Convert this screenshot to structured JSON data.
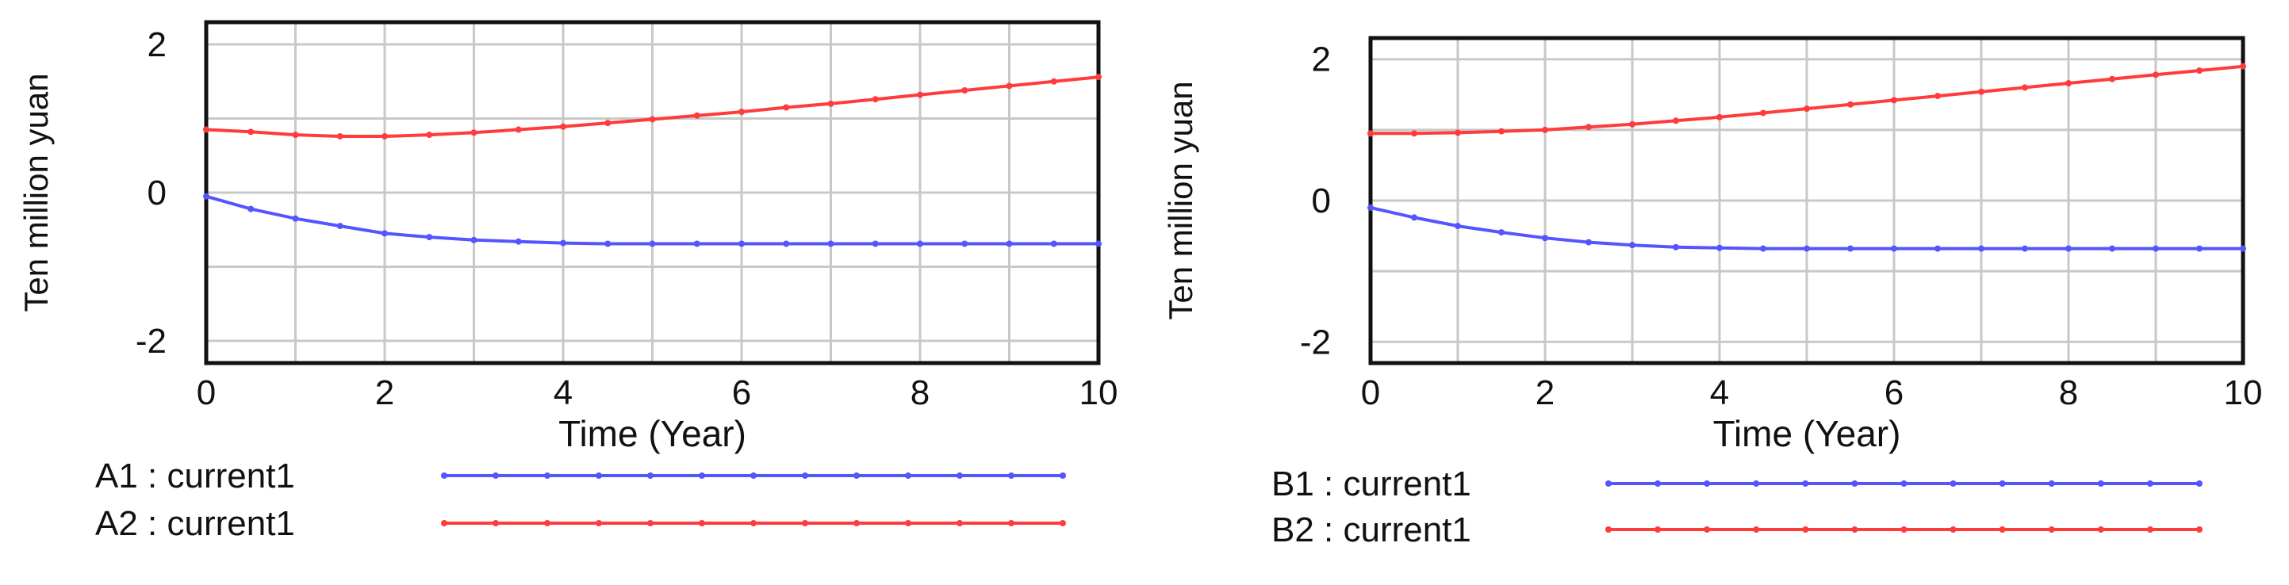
{
  "chart_data": [
    {
      "type": "line",
      "xlabel": "Time (Year)",
      "ylabel": "Ten million yuan",
      "xlim": [
        0,
        10
      ],
      "ylim": [
        -2.3,
        2.3
      ],
      "xticks": [
        0,
        2,
        4,
        6,
        8,
        10
      ],
      "yticks": [
        -2,
        0,
        2
      ],
      "grid": true,
      "legend_position": "bottom",
      "series": [
        {
          "name": "A1 : current1",
          "color": "#5555ff",
          "x": [
            0,
            0.5,
            1,
            1.5,
            2,
            2.5,
            3,
            3.5,
            4,
            4.5,
            5,
            5.5,
            6,
            6.5,
            7,
            7.5,
            8,
            8.5,
            9,
            9.5,
            10
          ],
          "y": [
            -0.05,
            -0.22,
            -0.35,
            -0.45,
            -0.55,
            -0.6,
            -0.64,
            -0.66,
            -0.68,
            -0.69,
            -0.69,
            -0.69,
            -0.69,
            -0.69,
            -0.69,
            -0.69,
            -0.69,
            -0.69,
            -0.69,
            -0.69,
            -0.69
          ]
        },
        {
          "name": "A2 : current1",
          "color": "#ff3b3b",
          "x": [
            0,
            0.5,
            1,
            1.5,
            2,
            2.5,
            3,
            3.5,
            4,
            4.5,
            5,
            5.5,
            6,
            6.5,
            7,
            7.5,
            8,
            8.5,
            9,
            9.5,
            10
          ],
          "y": [
            0.85,
            0.82,
            0.78,
            0.76,
            0.76,
            0.78,
            0.81,
            0.85,
            0.89,
            0.94,
            0.99,
            1.04,
            1.09,
            1.15,
            1.2,
            1.26,
            1.32,
            1.38,
            1.44,
            1.5,
            1.56
          ]
        }
      ]
    },
    {
      "type": "line",
      "xlabel": "Time (Year)",
      "ylabel": "Ten million yuan",
      "xlim": [
        0,
        10
      ],
      "ylim": [
        -2.3,
        2.3
      ],
      "xticks": [
        0,
        2,
        4,
        6,
        8,
        10
      ],
      "yticks": [
        -2,
        0,
        2
      ],
      "grid": true,
      "legend_position": "bottom",
      "series": [
        {
          "name": "B1 : current1",
          "color": "#5555ff",
          "x": [
            0,
            0.5,
            1,
            1.5,
            2,
            2.5,
            3,
            3.5,
            4,
            4.5,
            5,
            5.5,
            6,
            6.5,
            7,
            7.5,
            8,
            8.5,
            9,
            9.5,
            10
          ],
          "y": [
            -0.1,
            -0.24,
            -0.36,
            -0.45,
            -0.53,
            -0.59,
            -0.63,
            -0.66,
            -0.67,
            -0.68,
            -0.68,
            -0.68,
            -0.68,
            -0.68,
            -0.68,
            -0.68,
            -0.68,
            -0.68,
            -0.68,
            -0.68,
            -0.68
          ]
        },
        {
          "name": "B2 : current1",
          "color": "#ff3b3b",
          "x": [
            0,
            0.5,
            1,
            1.5,
            2,
            2.5,
            3,
            3.5,
            4,
            4.5,
            5,
            5.5,
            6,
            6.5,
            7,
            7.5,
            8,
            8.5,
            9,
            9.5,
            10
          ],
          "y": [
            0.95,
            0.95,
            0.96,
            0.98,
            1.0,
            1.04,
            1.08,
            1.13,
            1.18,
            1.24,
            1.3,
            1.36,
            1.42,
            1.48,
            1.54,
            1.6,
            1.66,
            1.72,
            1.78,
            1.84,
            1.9
          ]
        }
      ]
    }
  ]
}
